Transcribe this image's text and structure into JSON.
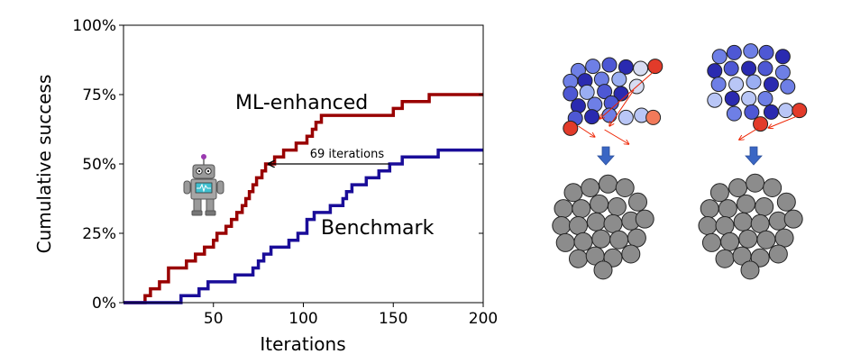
{
  "chart_data": {
    "type": "line",
    "title": "",
    "xlabel": "Iterations",
    "ylabel": "Cumulative success",
    "xlim": [
      0,
      200
    ],
    "ylim": [
      0,
      1
    ],
    "xticks": [
      50,
      100,
      150,
      200
    ],
    "xtick_labels": [
      "50",
      "100",
      "150",
      "200"
    ],
    "yticks": [
      0,
      0.25,
      0.5,
      0.75,
      1.0
    ],
    "ytick_labels": [
      "0%",
      "25%",
      "50%",
      "75%",
      "100%"
    ],
    "grid": false,
    "step": true,
    "series": [
      {
        "name": "ML-enhanced",
        "color": "#990000",
        "points": [
          [
            0,
            0
          ],
          [
            12,
            0
          ],
          [
            12,
            0.025
          ],
          [
            15,
            0.025
          ],
          [
            15,
            0.05
          ],
          [
            20,
            0.05
          ],
          [
            20,
            0.075
          ],
          [
            25,
            0.075
          ],
          [
            25,
            0.125
          ],
          [
            35,
            0.125
          ],
          [
            35,
            0.15
          ],
          [
            40,
            0.15
          ],
          [
            40,
            0.175
          ],
          [
            45,
            0.175
          ],
          [
            45,
            0.2
          ],
          [
            50,
            0.2
          ],
          [
            50,
            0.225
          ],
          [
            52,
            0.225
          ],
          [
            52,
            0.25
          ],
          [
            57,
            0.25
          ],
          [
            57,
            0.275
          ],
          [
            60,
            0.275
          ],
          [
            60,
            0.3
          ],
          [
            63,
            0.3
          ],
          [
            63,
            0.325
          ],
          [
            66,
            0.325
          ],
          [
            66,
            0.35
          ],
          [
            68,
            0.35
          ],
          [
            68,
            0.375
          ],
          [
            70,
            0.375
          ],
          [
            70,
            0.4
          ],
          [
            72,
            0.4
          ],
          [
            72,
            0.425
          ],
          [
            74,
            0.425
          ],
          [
            74,
            0.45
          ],
          [
            77,
            0.45
          ],
          [
            77,
            0.475
          ],
          [
            79,
            0.475
          ],
          [
            79,
            0.5
          ],
          [
            84,
            0.5
          ],
          [
            84,
            0.525
          ],
          [
            89,
            0.525
          ],
          [
            89,
            0.55
          ],
          [
            96,
            0.55
          ],
          [
            96,
            0.575
          ],
          [
            102,
            0.575
          ],
          [
            102,
            0.6
          ],
          [
            105,
            0.6
          ],
          [
            105,
            0.625
          ],
          [
            107,
            0.625
          ],
          [
            107,
            0.65
          ],
          [
            110,
            0.65
          ],
          [
            110,
            0.675
          ],
          [
            150,
            0.675
          ],
          [
            150,
            0.7
          ],
          [
            155,
            0.7
          ],
          [
            155,
            0.725
          ],
          [
            170,
            0.725
          ],
          [
            170,
            0.75
          ],
          [
            200,
            0.75
          ]
        ]
      },
      {
        "name": "Benchmark",
        "color": "#1a0d99",
        "points": [
          [
            0,
            0
          ],
          [
            32,
            0
          ],
          [
            32,
            0.025
          ],
          [
            42,
            0.025
          ],
          [
            42,
            0.05
          ],
          [
            47,
            0.05
          ],
          [
            47,
            0.075
          ],
          [
            62,
            0.075
          ],
          [
            62,
            0.1
          ],
          [
            72,
            0.1
          ],
          [
            72,
            0.125
          ],
          [
            75,
            0.125
          ],
          [
            75,
            0.15
          ],
          [
            78,
            0.15
          ],
          [
            78,
            0.175
          ],
          [
            82,
            0.175
          ],
          [
            82,
            0.2
          ],
          [
            92,
            0.2
          ],
          [
            92,
            0.225
          ],
          [
            97,
            0.225
          ],
          [
            97,
            0.25
          ],
          [
            102,
            0.25
          ],
          [
            102,
            0.3
          ],
          [
            106,
            0.3
          ],
          [
            106,
            0.325
          ],
          [
            115,
            0.325
          ],
          [
            115,
            0.35
          ],
          [
            122,
            0.35
          ],
          [
            122,
            0.375
          ],
          [
            124,
            0.375
          ],
          [
            124,
            0.4
          ],
          [
            127,
            0.4
          ],
          [
            127,
            0.425
          ],
          [
            135,
            0.425
          ],
          [
            135,
            0.45
          ],
          [
            142,
            0.45
          ],
          [
            142,
            0.475
          ],
          [
            148,
            0.475
          ],
          [
            148,
            0.5
          ],
          [
            155,
            0.5
          ],
          [
            155,
            0.525
          ],
          [
            175,
            0.525
          ],
          [
            175,
            0.55
          ],
          [
            200,
            0.55
          ]
        ]
      }
    ],
    "annotations": [
      {
        "text": "ML-enhanced",
        "x": 110,
        "y": 0.725
      },
      {
        "text": "Benchmark",
        "x": 130,
        "y": 0.27
      },
      {
        "text": "69 iterations",
        "arrow_from": [
          148,
          0.5
        ],
        "arrow_to": [
          79,
          0.5
        ]
      }
    ]
  },
  "cluster_panels": [
    {
      "blue_atoms": [
        [
          0.18,
          0.18,
          "#6e7fe6"
        ],
        [
          0.33,
          0.12,
          "#6e7fe6"
        ],
        [
          0.5,
          0.1,
          "#4e58d4"
        ],
        [
          0.67,
          0.13,
          "#2a2ab0"
        ],
        [
          0.1,
          0.33,
          "#6e7fe6"
        ],
        [
          0.25,
          0.32,
          "#2a2ab0"
        ],
        [
          0.42,
          0.3,
          "#6e7fe6"
        ],
        [
          0.6,
          0.3,
          "#9aaef2"
        ],
        [
          0.1,
          0.5,
          "#4e58d4"
        ],
        [
          0.27,
          0.48,
          "#9aaef2"
        ],
        [
          0.45,
          0.47,
          "#4e58d4"
        ],
        [
          0.62,
          0.5,
          "#2a2ab0"
        ],
        [
          0.18,
          0.67,
          "#2a2ab0"
        ],
        [
          0.35,
          0.65,
          "#6e7fe6"
        ],
        [
          0.52,
          0.63,
          "#4e58d4"
        ],
        [
          0.15,
          0.84,
          "#4e58d4"
        ],
        [
          0.32,
          0.82,
          "#2a2ab0"
        ],
        [
          0.5,
          0.8,
          "#6e7fe6"
        ],
        [
          0.67,
          0.83,
          "#b9c6f6"
        ],
        [
          0.83,
          0.8,
          "#b9c6f6"
        ]
      ],
      "pale_atoms": [
        [
          0.82,
          0.15
        ],
        [
          0.78,
          0.4
        ]
      ],
      "red_atoms": [
        [
          0.97,
          0.12,
          "#e23b2a"
        ],
        [
          0.95,
          0.83,
          "#f27a5a"
        ],
        [
          0.1,
          0.98,
          "#e23b2a"
        ]
      ],
      "arrows": [
        [
          0.95,
          0.2,
          0.4,
          0.85
        ],
        [
          0.75,
          0.45,
          0.5,
          0.95
        ],
        [
          0.18,
          0.95,
          0.35,
          1.1
        ],
        [
          0.45,
          1.0,
          0.7,
          1.2
        ]
      ],
      "gray_atoms": [
        [
          0.2,
          0.15
        ],
        [
          0.37,
          0.1
        ],
        [
          0.55,
          0.06
        ],
        [
          0.72,
          0.1
        ],
        [
          0.85,
          0.25
        ],
        [
          0.1,
          0.32
        ],
        [
          0.28,
          0.32
        ],
        [
          0.46,
          0.27
        ],
        [
          0.64,
          0.3
        ],
        [
          0.08,
          0.5
        ],
        [
          0.25,
          0.5
        ],
        [
          0.43,
          0.46
        ],
        [
          0.6,
          0.48
        ],
        [
          0.78,
          0.45
        ],
        [
          0.92,
          0.43
        ],
        [
          0.12,
          0.68
        ],
        [
          0.3,
          0.67
        ],
        [
          0.48,
          0.64
        ],
        [
          0.66,
          0.65
        ],
        [
          0.84,
          0.63
        ],
        [
          0.25,
          0.85
        ],
        [
          0.42,
          0.82
        ],
        [
          0.6,
          0.84
        ],
        [
          0.78,
          0.8
        ],
        [
          0.5,
          0.97
        ]
      ]
    },
    {
      "blue_atoms": [
        [
          0.15,
          0.1,
          "#6e7fe6"
        ],
        [
          0.3,
          0.05,
          "#4e58d4"
        ],
        [
          0.47,
          0.03,
          "#6e7fe6"
        ],
        [
          0.63,
          0.05,
          "#4e58d4"
        ],
        [
          0.8,
          0.1,
          "#2a2ab0"
        ],
        [
          0.1,
          0.28,
          "#2a2ab0"
        ],
        [
          0.27,
          0.25,
          "#4e58d4"
        ],
        [
          0.45,
          0.25,
          "#2a2ab0"
        ],
        [
          0.62,
          0.25,
          "#4e58d4"
        ],
        [
          0.8,
          0.3,
          "#6e7fe6"
        ],
        [
          0.14,
          0.45,
          "#6e7fe6"
        ],
        [
          0.32,
          0.45,
          "#b9c6f6"
        ],
        [
          0.5,
          0.42,
          "#9aaef2"
        ],
        [
          0.68,
          0.45,
          "#2a2ab0"
        ],
        [
          0.85,
          0.48,
          "#6e7fe6"
        ],
        [
          0.1,
          0.65,
          "#b9c6f6"
        ],
        [
          0.28,
          0.63,
          "#2a2ab0"
        ],
        [
          0.45,
          0.63,
          "#b9c6f6"
        ],
        [
          0.62,
          0.63,
          "#6e7fe6"
        ],
        [
          0.3,
          0.82,
          "#6e7fe6"
        ],
        [
          0.48,
          0.8,
          "#4e58d4"
        ],
        [
          0.68,
          0.8,
          "#2a2ab0"
        ],
        [
          0.83,
          0.78,
          "#b9c6f6"
        ]
      ],
      "pale_atoms": [],
      "red_atoms": [
        [
          0.97,
          0.78,
          "#e23b2a"
        ],
        [
          0.57,
          0.95,
          "#e23b2a"
        ]
      ],
      "arrows": [
        [
          0.95,
          0.85,
          0.65,
          1.0
        ],
        [
          0.55,
          1.0,
          0.35,
          1.15
        ]
      ],
      "gray_atoms": [
        [
          0.2,
          0.15
        ],
        [
          0.38,
          0.1
        ],
        [
          0.55,
          0.05
        ],
        [
          0.72,
          0.1
        ],
        [
          0.86,
          0.25
        ],
        [
          0.1,
          0.32
        ],
        [
          0.28,
          0.32
        ],
        [
          0.46,
          0.27
        ],
        [
          0.64,
          0.3
        ],
        [
          0.08,
          0.5
        ],
        [
          0.25,
          0.5
        ],
        [
          0.43,
          0.46
        ],
        [
          0.6,
          0.48
        ],
        [
          0.78,
          0.45
        ],
        [
          0.93,
          0.43
        ],
        [
          0.12,
          0.68
        ],
        [
          0.3,
          0.67
        ],
        [
          0.48,
          0.64
        ],
        [
          0.66,
          0.65
        ],
        [
          0.84,
          0.63
        ],
        [
          0.25,
          0.85
        ],
        [
          0.42,
          0.82
        ],
        [
          0.6,
          0.84
        ],
        [
          0.78,
          0.8
        ],
        [
          0.5,
          0.97
        ]
      ]
    }
  ],
  "colors": {
    "transition_arrow": "#3a66c4",
    "small_arrow": "#ee2200",
    "gray_atom": "#8c8c8c",
    "robot_body": "#9a9a9a",
    "robot_screen": "#40c0d0"
  }
}
